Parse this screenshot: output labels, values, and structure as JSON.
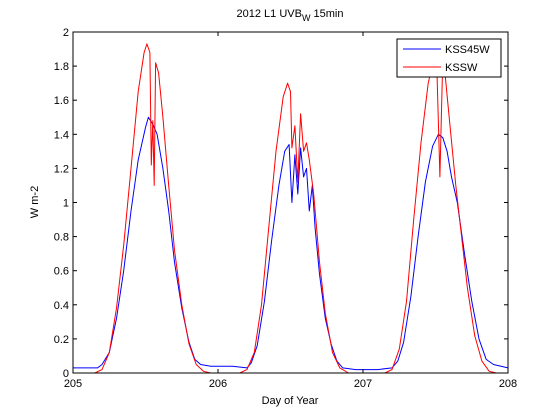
{
  "chart_data": {
    "type": "line",
    "title": "2012 L1 UVB",
    "title_subscript": "W",
    "title_suffix": " 15min",
    "xlabel": "Day of Year",
    "ylabel": "W m-2",
    "xlim": [
      205,
      208
    ],
    "ylim": [
      0,
      2
    ],
    "xticks": [
      205,
      206,
      207,
      208
    ],
    "xtick_labels": [
      "205",
      "206",
      "207",
      "208"
    ],
    "yticks": [
      0,
      0.2,
      0.4,
      0.6,
      0.8,
      1,
      1.2,
      1.4,
      1.6,
      1.8,
      2
    ],
    "ytick_labels": [
      "0",
      "0.2",
      "0.4",
      "0.6",
      "0.8",
      "1",
      "1.2",
      "1.4",
      "1.6",
      "1.8",
      "2"
    ],
    "grid": false,
    "legend_position": "top-right",
    "series": [
      {
        "name": "KSS45W",
        "color": "#0000ff",
        "points": [
          [
            205.0,
            0.03
          ],
          [
            205.1,
            0.03
          ],
          [
            205.17,
            0.03
          ],
          [
            205.2,
            0.05
          ],
          [
            205.25,
            0.12
          ],
          [
            205.3,
            0.32
          ],
          [
            205.35,
            0.6
          ],
          [
            205.4,
            0.95
          ],
          [
            205.45,
            1.25
          ],
          [
            205.5,
            1.44
          ],
          [
            205.52,
            1.5
          ],
          [
            205.55,
            1.46
          ],
          [
            205.58,
            1.4
          ],
          [
            205.62,
            1.2
          ],
          [
            205.66,
            0.95
          ],
          [
            205.7,
            0.65
          ],
          [
            205.75,
            0.38
          ],
          [
            205.8,
            0.18
          ],
          [
            205.84,
            0.08
          ],
          [
            205.88,
            0.05
          ],
          [
            205.95,
            0.04
          ],
          [
            206.1,
            0.04
          ],
          [
            206.2,
            0.03
          ],
          [
            206.23,
            0.06
          ],
          [
            206.27,
            0.16
          ],
          [
            206.32,
            0.42
          ],
          [
            206.37,
            0.78
          ],
          [
            206.42,
            1.1
          ],
          [
            206.46,
            1.3
          ],
          [
            206.49,
            1.34
          ],
          [
            206.51,
            1.0
          ],
          [
            206.53,
            1.28
          ],
          [
            206.55,
            1.05
          ],
          [
            206.57,
            1.32
          ],
          [
            206.59,
            1.15
          ],
          [
            206.61,
            1.2
          ],
          [
            206.63,
            0.95
          ],
          [
            206.65,
            1.1
          ],
          [
            206.67,
            0.85
          ],
          [
            206.7,
            0.58
          ],
          [
            206.74,
            0.32
          ],
          [
            206.78,
            0.17
          ],
          [
            206.82,
            0.07
          ],
          [
            206.86,
            0.03
          ],
          [
            206.95,
            0.02
          ],
          [
            207.1,
            0.02
          ],
          [
            207.2,
            0.03
          ],
          [
            207.24,
            0.07
          ],
          [
            207.28,
            0.18
          ],
          [
            207.33,
            0.45
          ],
          [
            207.38,
            0.8
          ],
          [
            207.43,
            1.12
          ],
          [
            207.48,
            1.33
          ],
          [
            207.52,
            1.4
          ],
          [
            207.55,
            1.38
          ],
          [
            207.58,
            1.3
          ],
          [
            207.61,
            1.15
          ],
          [
            207.65,
            1.0
          ],
          [
            207.7,
            0.7
          ],
          [
            207.75,
            0.42
          ],
          [
            207.8,
            0.2
          ],
          [
            207.85,
            0.08
          ],
          [
            207.9,
            0.05
          ],
          [
            208.0,
            0.03
          ]
        ]
      },
      {
        "name": "KSSW",
        "color": "#ff0000",
        "points": [
          [
            205.0,
            0.0
          ],
          [
            205.15,
            0.0
          ],
          [
            205.2,
            0.02
          ],
          [
            205.25,
            0.12
          ],
          [
            205.3,
            0.38
          ],
          [
            205.35,
            0.75
          ],
          [
            205.4,
            1.2
          ],
          [
            205.45,
            1.65
          ],
          [
            205.49,
            1.88
          ],
          [
            205.51,
            1.93
          ],
          [
            205.53,
            1.88
          ],
          [
            205.54,
            1.22
          ],
          [
            205.55,
            1.48
          ],
          [
            205.56,
            1.1
          ],
          [
            205.57,
            1.82
          ],
          [
            205.59,
            1.76
          ],
          [
            205.62,
            1.5
          ],
          [
            205.66,
            1.1
          ],
          [
            205.7,
            0.72
          ],
          [
            205.75,
            0.4
          ],
          [
            205.8,
            0.17
          ],
          [
            205.85,
            0.05
          ],
          [
            205.9,
            0.01
          ],
          [
            205.95,
            0.0
          ],
          [
            206.15,
            0.0
          ],
          [
            206.2,
            0.02
          ],
          [
            206.25,
            0.12
          ],
          [
            206.3,
            0.4
          ],
          [
            206.35,
            0.85
          ],
          [
            206.4,
            1.3
          ],
          [
            206.45,
            1.62
          ],
          [
            206.48,
            1.7
          ],
          [
            206.5,
            1.65
          ],
          [
            206.51,
            1.32
          ],
          [
            206.53,
            1.45
          ],
          [
            206.55,
            1.12
          ],
          [
            206.57,
            1.52
          ],
          [
            206.59,
            1.3
          ],
          [
            206.61,
            1.35
          ],
          [
            206.63,
            1.25
          ],
          [
            206.66,
            1.05
          ],
          [
            206.7,
            0.65
          ],
          [
            206.74,
            0.35
          ],
          [
            206.79,
            0.12
          ],
          [
            206.84,
            0.03
          ],
          [
            206.9,
            0.0
          ],
          [
            207.15,
            0.0
          ],
          [
            207.2,
            0.02
          ],
          [
            207.25,
            0.14
          ],
          [
            207.3,
            0.42
          ],
          [
            207.35,
            0.9
          ],
          [
            207.4,
            1.35
          ],
          [
            207.45,
            1.7
          ],
          [
            207.49,
            1.85
          ],
          [
            207.51,
            1.78
          ],
          [
            207.53,
            1.15
          ],
          [
            207.55,
            1.85
          ],
          [
            207.57,
            1.72
          ],
          [
            207.6,
            1.45
          ],
          [
            207.64,
            1.1
          ],
          [
            207.68,
            0.8
          ],
          [
            207.72,
            0.5
          ],
          [
            207.77,
            0.22
          ],
          [
            207.82,
            0.07
          ],
          [
            207.87,
            0.01
          ],
          [
            207.92,
            0.0
          ],
          [
            208.0,
            0.0
          ]
        ]
      }
    ]
  }
}
